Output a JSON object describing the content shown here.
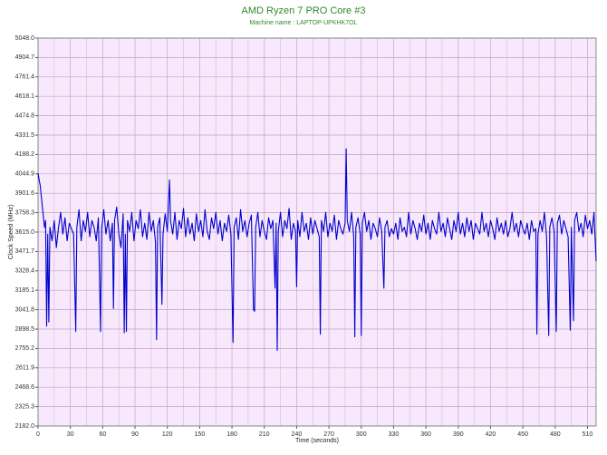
{
  "chart_data": {
    "type": "line",
    "title": "AMD Ryzen 7 PRO Core #3",
    "subtitle": "Machine name : LAPTOP-UPKHK7OL",
    "x_label": "Time (seconds)",
    "y_label": "Clock Speed (MHz)",
    "color": "#0000cc",
    "grid": true,
    "xlim": [
      0,
      518
    ],
    "xticks": [
      0,
      30,
      60,
      90,
      120,
      150,
      180,
      210,
      240,
      270,
      300,
      330,
      360,
      390,
      420,
      450,
      480,
      510
    ],
    "ylim": [
      2182.0,
      5048.0
    ],
    "yticks": [
      {
        "value": 2182.0,
        "label": "2182.0"
      },
      2325.3,
      2468.6,
      2611.9,
      2755.2,
      2898.5,
      3041.8,
      3185.1,
      3328.4,
      3471.7,
      {
        "value": 3615.0,
        "label": "3615.0"
      },
      3758.3,
      3901.6,
      4044.9,
      4188.2,
      4331.5,
      4474.8,
      4618.1,
      4761.4,
      4904.7,
      {
        "value": 5048.0,
        "label": "5048.0"
      }
    ],
    "x": [
      0,
      1,
      2,
      3,
      4,
      6,
      7,
      8,
      9,
      10,
      11,
      13,
      15,
      17,
      19,
      21,
      23,
      25,
      27,
      29,
      31,
      33,
      35,
      36,
      38,
      40,
      42,
      44,
      46,
      48,
      50,
      52,
      54,
      56,
      58,
      59,
      61,
      63,
      65,
      67,
      69,
      70,
      71,
      73,
      75,
      77,
      79,
      80,
      81,
      82,
      83,
      85,
      87,
      89,
      91,
      93,
      95,
      97,
      99,
      101,
      103,
      105,
      107,
      109,
      110,
      111,
      113,
      115,
      116,
      118,
      120,
      122,
      123,
      125,
      127,
      129,
      131,
      133,
      135,
      137,
      139,
      141,
      143,
      145,
      147,
      149,
      151,
      153,
      155,
      157,
      159,
      161,
      163,
      165,
      167,
      169,
      171,
      173,
      175,
      177,
      179,
      181,
      182,
      184,
      186,
      188,
      190,
      192,
      194,
      196,
      198,
      200,
      201,
      202,
      204,
      206,
      208,
      210,
      212,
      214,
      216,
      218,
      220,
      221,
      222,
      223,
      225,
      227,
      229,
      231,
      233,
      235,
      237,
      239,
      240,
      241,
      243,
      245,
      247,
      249,
      251,
      253,
      255,
      257,
      259,
      261,
      262,
      263,
      265,
      267,
      269,
      271,
      273,
      275,
      277,
      279,
      281,
      283,
      285,
      286,
      287,
      289,
      291,
      293,
      294,
      295,
      297,
      299,
      300,
      301,
      303,
      305,
      307,
      309,
      311,
      313,
      315,
      317,
      319,
      321,
      322,
      324,
      326,
      328,
      330,
      332,
      334,
      336,
      338,
      340,
      342,
      344,
      346,
      348,
      350,
      352,
      354,
      356,
      358,
      360,
      362,
      364,
      366,
      368,
      370,
      372,
      374,
      376,
      378,
      380,
      382,
      384,
      386,
      388,
      390,
      392,
      394,
      396,
      398,
      400,
      402,
      404,
      406,
      408,
      410,
      412,
      414,
      416,
      418,
      420,
      422,
      424,
      426,
      428,
      430,
      432,
      434,
      436,
      438,
      440,
      442,
      444,
      446,
      448,
      450,
      452,
      454,
      456,
      458,
      460,
      462,
      463,
      464,
      466,
      468,
      470,
      472,
      474,
      475,
      477,
      479,
      481,
      482,
      484,
      486,
      488,
      490,
      492,
      494,
      495,
      497,
      498,
      500,
      502,
      504,
      506,
      508,
      510,
      512,
      514,
      516,
      518
    ],
    "values": [
      4050,
      4000,
      3960,
      3880,
      3800,
      3650,
      3700,
      2920,
      3600,
      2950,
      3650,
      3550,
      3700,
      3500,
      3650,
      3760,
      3600,
      3720,
      3550,
      3680,
      3640,
      3600,
      2880,
      3650,
      3780,
      3550,
      3700,
      3620,
      3760,
      3580,
      3700,
      3650,
      3550,
      3720,
      2880,
      3640,
      3780,
      3600,
      3700,
      3550,
      3680,
      3050,
      3700,
      3800,
      3600,
      3500,
      3750,
      2870,
      3600,
      2880,
      3700,
      3620,
      3760,
      3550,
      3700,
      3640,
      3780,
      3580,
      3680,
      3560,
      3760,
      3620,
      3700,
      3540,
      2820,
      3650,
      3720,
      3080,
      3600,
      3750,
      3620,
      4000,
      3700,
      3600,
      3760,
      3560,
      3700,
      3640,
      3790,
      3580,
      3720,
      3600,
      3680,
      3550,
      3750,
      3620,
      3700,
      3580,
      3780,
      3620,
      3560,
      3720,
      3640,
      3760,
      3600,
      3700,
      3550,
      3680,
      3620,
      3740,
      3600,
      2800,
      3650,
      3720,
      3560,
      3780,
      3620,
      3700,
      3580,
      3680,
      3740,
      3040,
      3030,
      3650,
      3760,
      3580,
      3700,
      3620,
      3560,
      3720,
      3640,
      3700,
      3200,
      3680,
      2740,
      3620,
      3760,
      3580,
      3700,
      3640,
      3790,
      3560,
      3680,
      3620,
      3210,
      3700,
      3580,
      3760,
      3620,
      3680,
      3560,
      3720,
      3600,
      3700,
      3640,
      3580,
      2860,
      3700,
      3620,
      3760,
      3580,
      3680,
      3620,
      3740,
      3560,
      3700,
      3640,
      3600,
      3680,
      4230,
      3700,
      3620,
      3760,
      3580,
      2840,
      3650,
      3720,
      3600,
      2850,
      3680,
      3760,
      3620,
      3700,
      3560,
      3680,
      3640,
      3580,
      3720,
      3620,
      3200,
      3650,
      3700,
      3580,
      3640,
      3600,
      3680,
      3560,
      3720,
      3620,
      3650,
      3580,
      3760,
      3600,
      3700,
      3640,
      3560,
      3680,
      3620,
      3740,
      3600,
      3680,
      3560,
      3700,
      3640,
      3600,
      3760,
      3620,
      3680,
      3580,
      3720,
      3640,
      3560,
      3700,
      3620,
      3760,
      3600,
      3680,
      3580,
      3720,
      3620,
      3700,
      3560,
      3680,
      3640,
      3600,
      3760,
      3620,
      3680,
      3580,
      3700,
      3640,
      3560,
      3720,
      3620,
      3680,
      3600,
      3700,
      3580,
      3640,
      3760,
      3620,
      3680,
      3580,
      3700,
      3640,
      3600,
      3680,
      3560,
      3700,
      3620,
      3640,
      2860,
      3600,
      3700,
      3620,
      3760,
      3580,
      2850,
      3650,
      3720,
      3620,
      2880,
      3680,
      3740,
      3600,
      3700,
      3640,
      3580,
      2890,
      3650,
      2960,
      3700,
      3760,
      3620,
      3680,
      3580,
      3740,
      3640,
      3700,
      3600,
      3760,
      3400
    ]
  }
}
